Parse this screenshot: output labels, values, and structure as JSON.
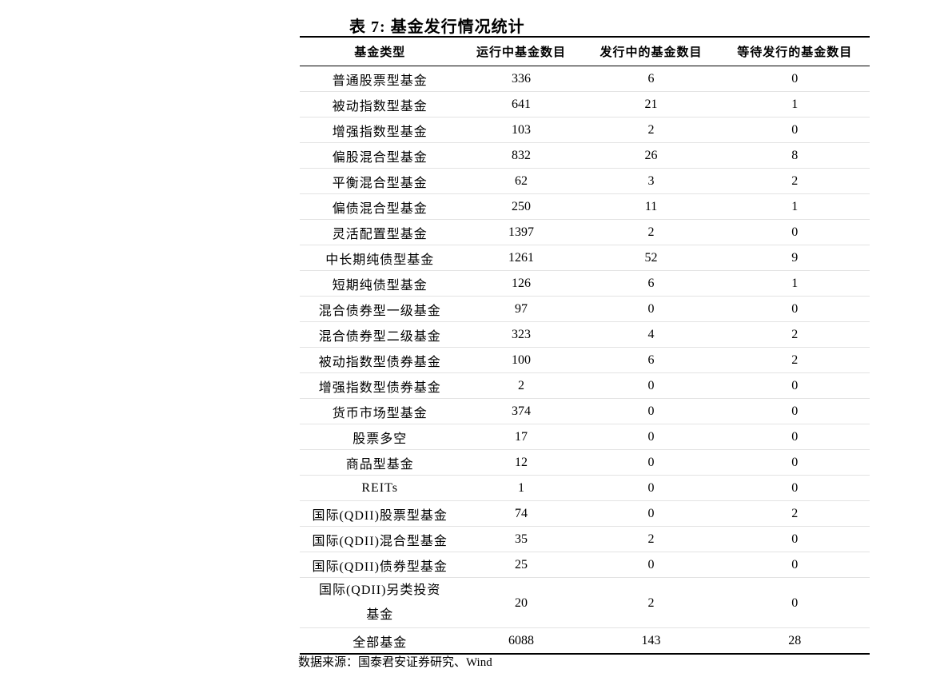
{
  "title": "表 7: 基金发行情况统计",
  "headers": [
    "基金类型",
    "运行中基金数目",
    "发行中的基金数目",
    "等待发行的基金数目"
  ],
  "rows": [
    [
      "普通股票型基金",
      "336",
      "6",
      "0"
    ],
    [
      "被动指数型基金",
      "641",
      "21",
      "1"
    ],
    [
      "增强指数型基金",
      "103",
      "2",
      "0"
    ],
    [
      "偏股混合型基金",
      "832",
      "26",
      "8"
    ],
    [
      "平衡混合型基金",
      "62",
      "3",
      "2"
    ],
    [
      "偏债混合型基金",
      "250",
      "11",
      "1"
    ],
    [
      "灵活配置型基金",
      "1397",
      "2",
      "0"
    ],
    [
      "中长期纯债型基金",
      "1261",
      "52",
      "9"
    ],
    [
      "短期纯债型基金",
      "126",
      "6",
      "1"
    ],
    [
      "混合债券型一级基金",
      "97",
      "0",
      "0"
    ],
    [
      "混合债券型二级基金",
      "323",
      "4",
      "2"
    ],
    [
      "被动指数型债券基金",
      "100",
      "6",
      "2"
    ],
    [
      "增强指数型债券基金",
      "2",
      "0",
      "0"
    ],
    [
      "货币市场型基金",
      "374",
      "0",
      "0"
    ],
    [
      "股票多空",
      "17",
      "0",
      "0"
    ],
    [
      "商品型基金",
      "12",
      "0",
      "0"
    ],
    [
      "REITs",
      "1",
      "0",
      "0"
    ],
    [
      "国际(QDII)股票型基金",
      "74",
      "0",
      "2"
    ],
    [
      "国际(QDII)混合型基金",
      "35",
      "2",
      "0"
    ],
    [
      "国际(QDII)债券型基金",
      "25",
      "0",
      "0"
    ],
    [
      "国际(QDII)另类投资基金",
      "20",
      "2",
      "0"
    ],
    [
      "全部基金",
      "6088",
      "143",
      "28"
    ]
  ],
  "source": "数据来源：国泰君安证券研究、Wind"
}
